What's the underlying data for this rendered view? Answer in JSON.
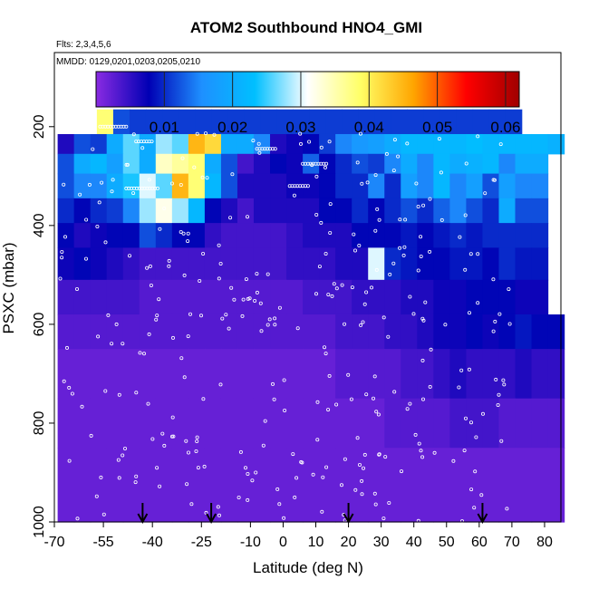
{
  "chart_data": {
    "type": "heatmap",
    "title": "ATOM2 Southbound HNO4_GMI",
    "annotation_flights": "Flts: 2,3,4,5,6",
    "annotation_dates": "MMDD: 0129,0201,0203,0205,0210",
    "xlabel": "Latitude (deg N)",
    "ylabel": "PSXC (mbar)",
    "xlim": [
      -70,
      85
    ],
    "ylim": [
      1000,
      50
    ],
    "x_ticks": [
      -70,
      -55,
      -40,
      -25,
      -10,
      0,
      10,
      20,
      30,
      40,
      50,
      60,
      70,
      80
    ],
    "x_tick_labels": [
      "-70",
      "-55",
      "-40",
      "-25",
      "-10",
      "0",
      "10",
      "20",
      "30",
      "40",
      "50",
      "60",
      "70",
      "80"
    ],
    "y_ticks": [
      200,
      400,
      600,
      800,
      1000
    ],
    "y_tick_labels": [
      "200",
      "400",
      "600",
      "800",
      "1000"
    ],
    "colorbar": {
      "range": [
        0.0,
        0.062
      ],
      "ticks": [
        0.01,
        0.02,
        0.03,
        0.04,
        0.05,
        0.06
      ],
      "tick_labels": [
        "0.01",
        "0.02",
        "0.03",
        "0.04",
        "0.05",
        "0.06"
      ],
      "colors": [
        "#8a2be2",
        "#0000b4",
        "#1e90ff",
        "#00bfff",
        "#ffffff",
        "#ffff66",
        "#ffa500",
        "#ff0000",
        "#a00000"
      ]
    },
    "arrows_latitude": [
      -43,
      -22,
      20,
      61
    ],
    "pressure_bins": [
      {
        "p_top": 165,
        "p_bottom": 215,
        "lat_start": -57,
        "values": [
          0.038,
          0.012,
          0.011,
          0.011,
          0.011,
          0.011,
          0.011,
          0.011,
          0.011,
          0.011,
          0.011,
          0.011,
          0.011,
          0.011,
          0.011,
          0.011,
          0.011,
          0.011,
          0.011,
          0.011,
          0.011,
          0.011,
          0.011,
          0.011,
          0.011,
          0.011
        ]
      },
      {
        "p_top": 215,
        "p_bottom": 255,
        "lat_start": -69,
        "values": [
          0.006,
          0.012,
          0.011,
          0.02,
          0.026,
          0.02,
          0.028,
          0.026,
          0.045,
          0.042,
          0.02,
          0.02,
          0.015,
          0.006,
          0.007,
          0.008,
          0.011,
          0.015,
          0.017,
          0.018,
          0.02,
          0.022,
          0.022,
          0.022,
          0.022,
          0.023,
          0.022,
          0.022,
          0.022,
          0.022,
          0.021
        ]
      },
      {
        "p_top": 255,
        "p_bottom": 295,
        "lat_start": -69,
        "values": [
          0.012,
          0.02,
          0.022,
          0.018,
          0.026,
          0.02,
          0.034,
          0.036,
          0.038,
          0.02,
          0.012,
          0.004,
          0.006,
          0.008,
          0.007,
          0.013,
          0.008,
          0.01,
          0.012,
          0.011,
          0.015,
          0.02,
          0.015,
          0.022,
          0.02,
          0.021,
          0.022,
          0.015,
          0.02,
          0.02
        ]
      },
      {
        "p_top": 295,
        "p_bottom": 345,
        "lat_start": -69,
        "values": [
          0.012,
          0.015,
          0.015,
          0.02,
          0.024,
          0.03,
          0.026,
          0.045,
          0.038,
          0.022,
          0.012,
          0.006,
          0.006,
          0.006,
          0.007,
          0.007,
          0.008,
          0.01,
          0.01,
          0.015,
          0.01,
          0.018,
          0.015,
          0.022,
          0.015,
          0.018,
          0.012,
          0.018,
          0.015,
          0.015
        ]
      },
      {
        "p_top": 345,
        "p_bottom": 395,
        "lat_start": -69,
        "values": [
          0.01,
          0.008,
          0.01,
          0.011,
          0.015,
          0.028,
          0.032,
          0.028,
          0.022,
          0.008,
          0.006,
          0.004,
          0.006,
          0.006,
          0.006,
          0.006,
          0.008,
          0.008,
          0.01,
          0.008,
          0.01,
          0.012,
          0.01,
          0.013,
          0.015,
          0.012,
          0.01,
          0.02,
          0.012,
          0.012
        ]
      },
      {
        "p_top": 395,
        "p_bottom": 445,
        "lat_start": -69,
        "values": [
          0.008,
          0.006,
          0.007,
          0.008,
          0.008,
          0.012,
          0.01,
          0.008,
          0.008,
          0.005,
          0.004,
          0.004,
          0.004,
          0.004,
          0.005,
          0.006,
          0.006,
          0.006,
          0.008,
          0.008,
          0.008,
          0.009,
          0.008,
          0.009,
          0.01,
          0.009,
          0.01,
          0.01,
          0.01,
          0.01
        ]
      },
      {
        "p_top": 445,
        "p_bottom": 510,
        "lat_start": -69,
        "values": [
          0.007,
          0.008,
          0.007,
          0.006,
          0.005,
          0.004,
          0.004,
          0.004,
          0.004,
          0.004,
          0.004,
          0.004,
          0.004,
          0.004,
          0.005,
          0.005,
          0.005,
          0.006,
          0.006,
          0.03,
          0.01,
          0.009,
          0.008,
          0.008,
          0.009,
          0.009,
          0.008,
          0.01,
          0.009,
          0.009
        ]
      },
      {
        "p_top": 510,
        "p_bottom": 580,
        "lat_start": -69,
        "values": [
          0.004,
          0.004,
          0.004,
          0.004,
          0.004,
          0.003,
          0.003,
          0.003,
          0.003,
          0.003,
          0.003,
          0.003,
          0.003,
          0.003,
          0.003,
          0.004,
          0.004,
          0.004,
          0.005,
          0.005,
          0.005,
          0.006,
          0.006,
          0.007,
          0.007,
          0.008,
          0.008,
          0.008,
          0.007,
          0.007
        ]
      },
      {
        "p_top": 580,
        "p_bottom": 650,
        "lat_start": -69,
        "values": [
          0.003,
          0.003,
          0.003,
          0.003,
          0.003,
          0.003,
          0.003,
          0.003,
          0.003,
          0.003,
          0.003,
          0.003,
          0.003,
          0.003,
          0.003,
          0.003,
          0.003,
          0.004,
          0.004,
          0.004,
          0.005,
          0.005,
          0.006,
          0.007,
          0.007,
          0.008,
          0.007,
          0.008,
          0.009,
          0.008,
          0.008
        ]
      },
      {
        "p_top": 650,
        "p_bottom": 750,
        "lat_start": -69,
        "values": [
          0.002,
          0.002,
          0.002,
          0.002,
          0.002,
          0.002,
          0.002,
          0.002,
          0.002,
          0.002,
          0.002,
          0.002,
          0.002,
          0.002,
          0.002,
          0.002,
          0.002,
          0.003,
          0.003,
          0.003,
          0.003,
          0.004,
          0.004,
          0.005,
          0.006,
          0.005,
          0.005,
          0.005,
          0.006,
          0.005,
          0.005
        ]
      },
      {
        "p_top": 750,
        "p_bottom": 850,
        "lat_start": -69,
        "values": [
          0.002,
          0.002,
          0.002,
          0.002,
          0.002,
          0.002,
          0.002,
          0.002,
          0.002,
          0.002,
          0.002,
          0.002,
          0.002,
          0.002,
          0.002,
          0.002,
          0.002,
          0.002,
          0.002,
          0.002,
          0.003,
          0.003,
          0.003,
          0.003,
          0.004,
          0.004,
          0.004,
          0.003,
          0.003,
          0.003,
          0.003
        ]
      },
      {
        "p_top": 850,
        "p_bottom": 1000,
        "lat_start": -69,
        "values": [
          0.002,
          0.002,
          0.002,
          0.002,
          0.002,
          0.002,
          0.002,
          0.002,
          0.002,
          0.002,
          0.002,
          0.002,
          0.002,
          0.002,
          0.002,
          0.002,
          0.002,
          0.002,
          0.002,
          0.002,
          0.002,
          0.002,
          0.002,
          0.002,
          0.002,
          0.002,
          0.002,
          0.002,
          0.002,
          0.002,
          0.002
        ]
      }
    ],
    "bin_width_deg": 5
  }
}
